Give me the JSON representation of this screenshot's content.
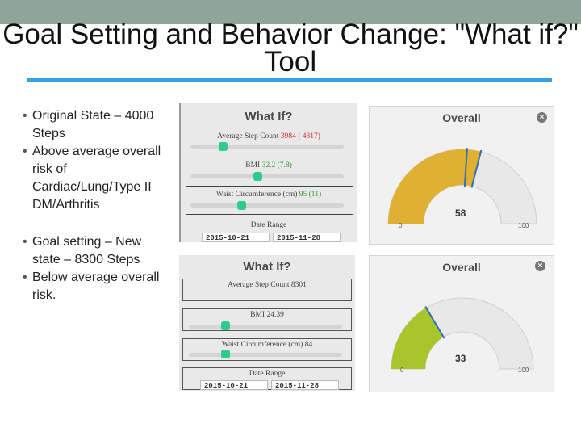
{
  "slide": {
    "title": "Goal Setting and Behavior Change: \"What if?\" Tool",
    "bullets_top": [
      "Original State – 4000 Steps",
      "Above average overall risk of Cardiac/Lung/Type II DM/Arthritis"
    ],
    "bullets_bottom": [
      "Goal setting – New state – 8300 Steps",
      "Below average overall risk."
    ]
  },
  "whatif1": {
    "title": "What If?",
    "step_label": "Average Step Count",
    "step_value": "3984",
    "step_orig": "( 4317)",
    "bmi_label": "BMI",
    "bmi_value": "32.2",
    "bmi_orig": "(7.8)",
    "waist_label": "Waist Circumference (cm)",
    "waist_value": "95",
    "waist_orig": "(11)",
    "date_label": "Date Range",
    "date_from": "2015-10-21",
    "date_to": "2015-11-28"
  },
  "whatif2": {
    "title": "What If?",
    "step_label": "Average Step Count 8301",
    "bmi_label": "BMI 24.39",
    "waist_label": "Waist Circumference (cm) 84",
    "date_label": "Date Range",
    "date_from": "2015-10-21",
    "date_to": "2015-11-28"
  },
  "overall1": {
    "title": "Overall",
    "value": "58",
    "min": "0",
    "max": "100",
    "score": 58,
    "fill_color": "#e0b032"
  },
  "overall2": {
    "title": "Overall",
    "value": "33",
    "min": "0",
    "max": "100",
    "score": 33,
    "fill_color": "#a8c62c"
  },
  "colors": {
    "topbar": "#8fa49a",
    "rule": "#3aa0e6",
    "knob": "#2ecc8c",
    "needle": "#2f6fb5"
  }
}
